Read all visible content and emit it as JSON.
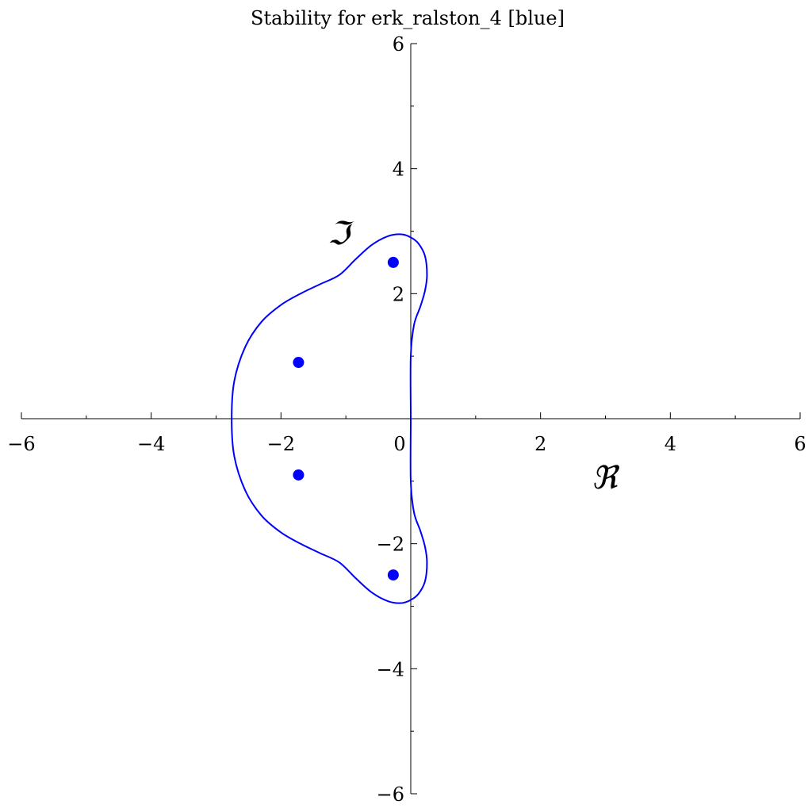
{
  "chart_data": {
    "type": "line",
    "title": "Stability for erk_ralston_4 [blue]",
    "xlabel": "ℜ",
    "ylabel": "ℑ",
    "xlim": [
      -6,
      6
    ],
    "ylim": [
      -6,
      6
    ],
    "x_major_ticks": [
      -6,
      -4,
      -2,
      0,
      2,
      4,
      6
    ],
    "x_tick_labels": [
      "−6",
      "−4",
      "−2",
      "0",
      "2",
      "4",
      "6"
    ],
    "y_major_ticks": [
      -6,
      -4,
      -2,
      2,
      4,
      6
    ],
    "y_tick_labels": [
      "−6",
      "−4",
      "−2",
      "2",
      "4",
      "6"
    ],
    "minor_tick_step": 1,
    "grid": false,
    "colors": {
      "curve": "#0000ff",
      "points": "#0000ff",
      "axes": "#000000"
    },
    "series": [
      {
        "type": "line",
        "closed": true,
        "points": [
          [
            0.0,
            0.0
          ],
          [
            0.0,
            1.0
          ],
          [
            0.05,
            1.5
          ],
          [
            0.15,
            1.8
          ],
          [
            0.22,
            2.05
          ],
          [
            0.25,
            2.3
          ],
          [
            0.22,
            2.6
          ],
          [
            0.12,
            2.8
          ],
          [
            0.0,
            2.9
          ],
          [
            -0.15,
            2.95
          ],
          [
            -0.35,
            2.92
          ],
          [
            -0.6,
            2.78
          ],
          [
            -0.85,
            2.55
          ],
          [
            -1.1,
            2.3
          ],
          [
            -1.4,
            2.15
          ],
          [
            -1.7,
            2.0
          ],
          [
            -2.0,
            1.82
          ],
          [
            -2.3,
            1.55
          ],
          [
            -2.55,
            1.15
          ],
          [
            -2.72,
            0.6
          ],
          [
            -2.76,
            0.0
          ],
          [
            -2.72,
            -0.6
          ],
          [
            -2.55,
            -1.15
          ],
          [
            -2.3,
            -1.55
          ],
          [
            -2.0,
            -1.82
          ],
          [
            -1.7,
            -2.0
          ],
          [
            -1.4,
            -2.15
          ],
          [
            -1.1,
            -2.3
          ],
          [
            -0.85,
            -2.55
          ],
          [
            -0.6,
            -2.78
          ],
          [
            -0.35,
            -2.92
          ],
          [
            -0.15,
            -2.95
          ],
          [
            0.0,
            -2.9
          ],
          [
            0.12,
            -2.8
          ],
          [
            0.22,
            -2.6
          ],
          [
            0.25,
            -2.3
          ],
          [
            0.22,
            -2.05
          ],
          [
            0.15,
            -1.8
          ],
          [
            0.05,
            -1.5
          ],
          [
            0.0,
            -1.0
          ],
          [
            0.0,
            0.0
          ]
        ]
      },
      {
        "type": "scatter",
        "points": [
          [
            -0.27,
            2.5
          ],
          [
            -1.73,
            0.9
          ],
          [
            -1.73,
            -0.9
          ],
          [
            -0.27,
            -2.5
          ]
        ]
      }
    ]
  }
}
